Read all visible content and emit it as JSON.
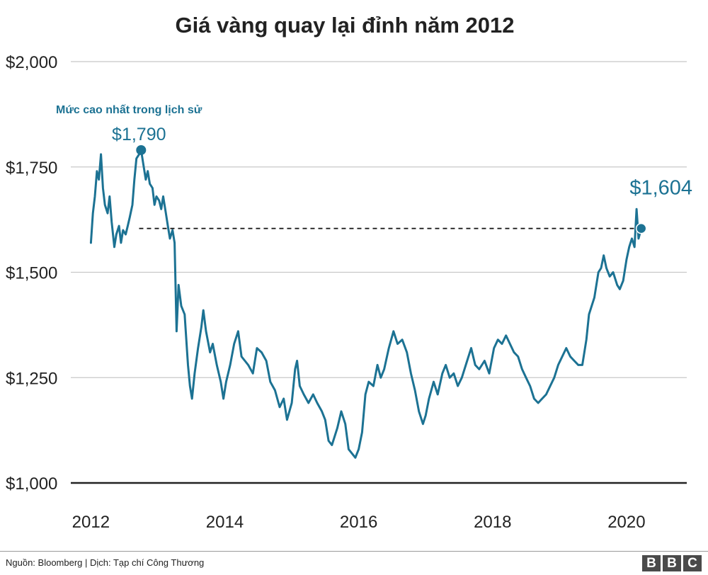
{
  "chart_data": {
    "type": "line",
    "title": "Giá vàng quay lại đỉnh năm 2012",
    "xlabel": "",
    "ylabel": "",
    "xlim": [
      2011.7,
      2020.9
    ],
    "ylim": [
      1000,
      2000
    ],
    "y_ticks": [
      1000,
      1250,
      1500,
      1750,
      2000
    ],
    "y_tick_labels": [
      "$1,000",
      "$1,250",
      "$1,500",
      "$1,750",
      "$2,000"
    ],
    "x_ticks": [
      2012,
      2014,
      2016,
      2018,
      2020
    ],
    "x_tick_labels": [
      "2012",
      "2014",
      "2016",
      "2018",
      "2020"
    ],
    "grid": true,
    "color": "#1c7293",
    "series": [
      {
        "name": "",
        "points": [
          [
            2012.0,
            1570
          ],
          [
            2012.03,
            1640
          ],
          [
            2012.06,
            1680
          ],
          [
            2012.09,
            1740
          ],
          [
            2012.12,
            1720
          ],
          [
            2012.15,
            1780
          ],
          [
            2012.18,
            1700
          ],
          [
            2012.21,
            1660
          ],
          [
            2012.25,
            1640
          ],
          [
            2012.28,
            1680
          ],
          [
            2012.31,
            1620
          ],
          [
            2012.35,
            1560
          ],
          [
            2012.38,
            1590
          ],
          [
            2012.42,
            1610
          ],
          [
            2012.45,
            1570
          ],
          [
            2012.48,
            1600
          ],
          [
            2012.52,
            1590
          ],
          [
            2012.55,
            1610
          ],
          [
            2012.58,
            1630
          ],
          [
            2012.62,
            1660
          ],
          [
            2012.65,
            1720
          ],
          [
            2012.68,
            1770
          ],
          [
            2012.72,
            1780
          ],
          [
            2012.75,
            1790
          ],
          [
            2012.78,
            1760
          ],
          [
            2012.82,
            1720
          ],
          [
            2012.85,
            1740
          ],
          [
            2012.88,
            1710
          ],
          [
            2012.92,
            1700
          ],
          [
            2012.95,
            1660
          ],
          [
            2012.98,
            1680
          ],
          [
            2013.02,
            1670
          ],
          [
            2013.05,
            1650
          ],
          [
            2013.08,
            1680
          ],
          [
            2013.12,
            1640
          ],
          [
            2013.15,
            1610
          ],
          [
            2013.18,
            1580
          ],
          [
            2013.22,
            1600
          ],
          [
            2013.25,
            1570
          ],
          [
            2013.28,
            1360
          ],
          [
            2013.31,
            1470
          ],
          [
            2013.35,
            1420
          ],
          [
            2013.4,
            1400
          ],
          [
            2013.45,
            1280
          ],
          [
            2013.48,
            1230
          ],
          [
            2013.51,
            1200
          ],
          [
            2013.55,
            1260
          ],
          [
            2013.6,
            1320
          ],
          [
            2013.65,
            1370
          ],
          [
            2013.68,
            1410
          ],
          [
            2013.72,
            1360
          ],
          [
            2013.78,
            1310
          ],
          [
            2013.82,
            1330
          ],
          [
            2013.88,
            1280
          ],
          [
            2013.94,
            1240
          ],
          [
            2013.98,
            1200
          ],
          [
            2014.02,
            1240
          ],
          [
            2014.08,
            1280
          ],
          [
            2014.14,
            1330
          ],
          [
            2014.2,
            1360
          ],
          [
            2014.25,
            1300
          ],
          [
            2014.3,
            1290
          ],
          [
            2014.35,
            1280
          ],
          [
            2014.42,
            1260
          ],
          [
            2014.48,
            1320
          ],
          [
            2014.55,
            1310
          ],
          [
            2014.62,
            1290
          ],
          [
            2014.68,
            1240
          ],
          [
            2014.75,
            1220
          ],
          [
            2014.82,
            1180
          ],
          [
            2014.88,
            1200
          ],
          [
            2014.93,
            1150
          ],
          [
            2015.0,
            1190
          ],
          [
            2015.05,
            1270
          ],
          [
            2015.08,
            1290
          ],
          [
            2015.12,
            1230
          ],
          [
            2015.18,
            1210
          ],
          [
            2015.25,
            1190
          ],
          [
            2015.32,
            1210
          ],
          [
            2015.38,
            1190
          ],
          [
            2015.45,
            1170
          ],
          [
            2015.5,
            1150
          ],
          [
            2015.55,
            1100
          ],
          [
            2015.6,
            1090
          ],
          [
            2015.68,
            1130
          ],
          [
            2015.74,
            1170
          ],
          [
            2015.8,
            1140
          ],
          [
            2015.85,
            1080
          ],
          [
            2015.9,
            1070
          ],
          [
            2015.95,
            1060
          ],
          [
            2016.0,
            1080
          ],
          [
            2016.05,
            1120
          ],
          [
            2016.1,
            1210
          ],
          [
            2016.15,
            1240
          ],
          [
            2016.22,
            1230
          ],
          [
            2016.28,
            1280
          ],
          [
            2016.33,
            1250
          ],
          [
            2016.38,
            1270
          ],
          [
            2016.45,
            1320
          ],
          [
            2016.52,
            1360
          ],
          [
            2016.58,
            1330
          ],
          [
            2016.65,
            1340
          ],
          [
            2016.72,
            1310
          ],
          [
            2016.78,
            1260
          ],
          [
            2016.84,
            1220
          ],
          [
            2016.9,
            1170
          ],
          [
            2016.96,
            1140
          ],
          [
            2017.0,
            1160
          ],
          [
            2017.05,
            1200
          ],
          [
            2017.12,
            1240
          ],
          [
            2017.18,
            1210
          ],
          [
            2017.25,
            1260
          ],
          [
            2017.3,
            1280
          ],
          [
            2017.36,
            1250
          ],
          [
            2017.42,
            1260
          ],
          [
            2017.48,
            1230
          ],
          [
            2017.54,
            1250
          ],
          [
            2017.62,
            1290
          ],
          [
            2017.68,
            1320
          ],
          [
            2017.74,
            1280
          ],
          [
            2017.8,
            1270
          ],
          [
            2017.88,
            1290
          ],
          [
            2017.95,
            1260
          ],
          [
            2018.02,
            1320
          ],
          [
            2018.08,
            1340
          ],
          [
            2018.14,
            1330
          ],
          [
            2018.2,
            1350
          ],
          [
            2018.26,
            1330
          ],
          [
            2018.32,
            1310
          ],
          [
            2018.38,
            1300
          ],
          [
            2018.44,
            1270
          ],
          [
            2018.5,
            1250
          ],
          [
            2018.56,
            1230
          ],
          [
            2018.62,
            1200
          ],
          [
            2018.68,
            1190
          ],
          [
            2018.74,
            1200
          ],
          [
            2018.8,
            1210
          ],
          [
            2018.86,
            1230
          ],
          [
            2018.92,
            1250
          ],
          [
            2018.98,
            1280
          ],
          [
            2019.04,
            1300
          ],
          [
            2019.1,
            1320
          ],
          [
            2019.16,
            1300
          ],
          [
            2019.22,
            1290
          ],
          [
            2019.28,
            1280
          ],
          [
            2019.34,
            1280
          ],
          [
            2019.4,
            1340
          ],
          [
            2019.44,
            1400
          ],
          [
            2019.48,
            1420
          ],
          [
            2019.52,
            1440
          ],
          [
            2019.58,
            1500
          ],
          [
            2019.62,
            1510
          ],
          [
            2019.66,
            1540
          ],
          [
            2019.7,
            1510
          ],
          [
            2019.75,
            1490
          ],
          [
            2019.8,
            1500
          ],
          [
            2019.86,
            1470
          ],
          [
            2019.9,
            1460
          ],
          [
            2019.95,
            1480
          ],
          [
            2020.0,
            1530
          ],
          [
            2020.04,
            1560
          ],
          [
            2020.08,
            1580
          ],
          [
            2020.12,
            1560
          ],
          [
            2020.15,
            1650
          ],
          [
            2020.18,
            1580
          ],
          [
            2020.22,
            1604
          ]
        ]
      }
    ],
    "reference_line": {
      "y": 1604,
      "x_from": 2012.72,
      "x_to": 2020.22,
      "style": "dashed"
    },
    "markers": [
      {
        "x": 2012.75,
        "y": 1790,
        "label": "$1,790"
      },
      {
        "x": 2020.22,
        "y": 1604,
        "label": "$1,604"
      }
    ],
    "annotation": "Mức cao nhất trong lịch sử"
  },
  "footer": {
    "source": "Nguồn: Bloomberg | Dịch: Tạp chí Công Thương",
    "logo_letters": [
      "B",
      "B",
      "C"
    ]
  }
}
